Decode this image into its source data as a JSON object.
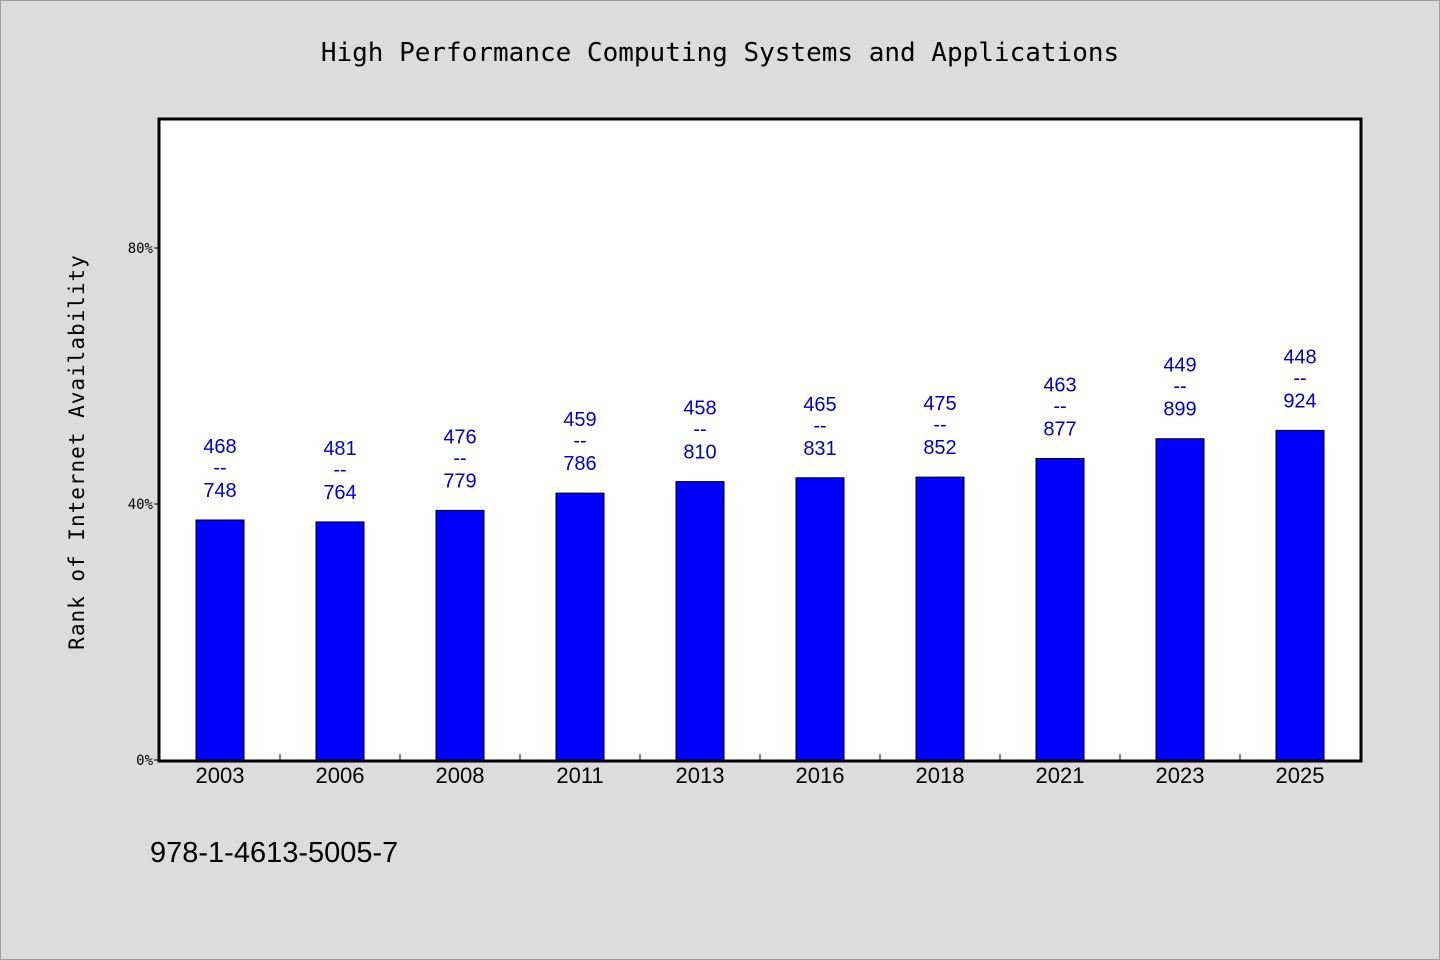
{
  "chart_data": {
    "type": "bar",
    "title": "High Performance Computing Systems and Applications",
    "xlabel": "",
    "ylabel": "Rank of Internet Availability",
    "ylim": [
      0,
      100
    ],
    "y_ticks": [
      {
        "value": 0,
        "label": "0%"
      },
      {
        "value": 40,
        "label": "40%"
      },
      {
        "value": 80,
        "label": "80%"
      }
    ],
    "categories": [
      "2003",
      "2006",
      "2008",
      "2011",
      "2013",
      "2016",
      "2018",
      "2021",
      "2023",
      "2025"
    ],
    "values": [
      37.5,
      37.2,
      39.0,
      41.7,
      43.5,
      44.1,
      44.2,
      47.1,
      50.2,
      51.5
    ],
    "data_labels": [
      {
        "top": "468",
        "sep": "--",
        "bottom": "748"
      },
      {
        "top": "481",
        "sep": "--",
        "bottom": "764"
      },
      {
        "top": "476",
        "sep": "--",
        "bottom": "779"
      },
      {
        "top": "459",
        "sep": "--",
        "bottom": "786"
      },
      {
        "top": "458",
        "sep": "--",
        "bottom": "810"
      },
      {
        "top": "465",
        "sep": "--",
        "bottom": "831"
      },
      {
        "top": "475",
        "sep": "--",
        "bottom": "852"
      },
      {
        "top": "463",
        "sep": "--",
        "bottom": "877"
      },
      {
        "top": "449",
        "sep": "--",
        "bottom": "899"
      },
      {
        "top": "448",
        "sep": "--",
        "bottom": "924"
      }
    ],
    "bar_color": "#0000ff",
    "label_color": "#0000cc",
    "grid": false,
    "legend": "none"
  },
  "footer": {
    "isbn": "978-1-4613-5005-7"
  }
}
